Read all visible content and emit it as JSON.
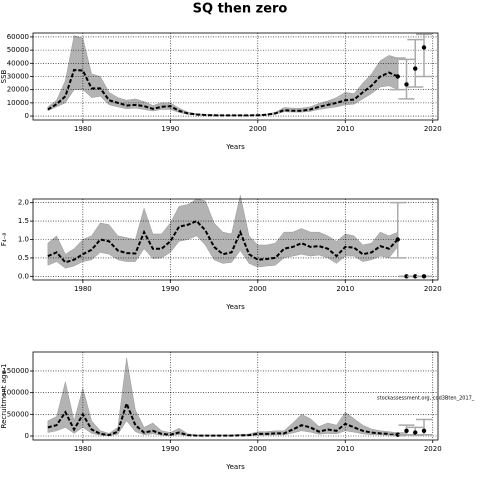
{
  "title": "SQ then zero",
  "chart_data": [
    {
      "type": "line",
      "ylabel": "SSB",
      "xlabel": "Years",
      "grid": true,
      "xlim": [
        1974.3,
        2020.6
      ],
      "xticks": [
        1980,
        1990,
        2000,
        2010,
        2020
      ],
      "ylim": [
        -3000,
        63000
      ],
      "yticks": [
        0,
        10000,
        20000,
        30000,
        40000,
        50000,
        60000
      ],
      "x": [
        1976,
        1977,
        1978,
        1979,
        1980,
        1981,
        1982,
        1983,
        1984,
        1985,
        1986,
        1987,
        1988,
        1989,
        1990,
        1991,
        1992,
        1993,
        1994,
        1995,
        1996,
        1997,
        1998,
        1999,
        2000,
        2001,
        2002,
        2003,
        2004,
        2005,
        2006,
        2007,
        2008,
        2009,
        2010,
        2011,
        2012,
        2013,
        2014,
        2015,
        2016
      ],
      "values": [
        5000,
        9000,
        15000,
        35000,
        34500,
        21000,
        21000,
        12000,
        10000,
        8000,
        8500,
        7500,
        5500,
        7000,
        7500,
        4000,
        2000,
        1200,
        800,
        600,
        500,
        500,
        500,
        500,
        600,
        1000,
        2000,
        4500,
        4000,
        4000,
        5000,
        7000,
        8500,
        10000,
        12000,
        12500,
        18000,
        23000,
        30000,
        33000,
        30000
      ],
      "upper": [
        7000,
        12000,
        27000,
        61000,
        59000,
        32000,
        30000,
        18000,
        14000,
        12000,
        13000,
        11000,
        8000,
        10000,
        10000,
        6000,
        3000,
        1800,
        1200,
        900,
        800,
        800,
        800,
        800,
        900,
        1500,
        2800,
        6500,
        6000,
        6000,
        7000,
        9500,
        11500,
        14000,
        18000,
        17000,
        25000,
        32000,
        42000,
        46000,
        44000
      ],
      "lower": [
        4000,
        7000,
        10000,
        20000,
        20000,
        14000,
        15000,
        8500,
        7000,
        5500,
        6000,
        5000,
        3800,
        5000,
        5000,
        2700,
        1300,
        800,
        500,
        400,
        300,
        300,
        300,
        300,
        400,
        700,
        1400,
        3200,
        3000,
        3000,
        3500,
        5000,
        6000,
        7000,
        8500,
        9000,
        13000,
        17000,
        22000,
        23000,
        20000
      ],
      "proj_x": [
        2016,
        2017,
        2018,
        2019
      ],
      "proj_values": [
        30000,
        24000,
        36000,
        52000
      ],
      "proj_lower": [
        20000,
        13000,
        22000,
        30000
      ],
      "proj_upper": [
        44000,
        43000,
        58000,
        62000
      ]
    },
    {
      "type": "line",
      "ylabel": "F₄₋₈",
      "xlabel": "Years",
      "grid": true,
      "xlim": [
        1974.3,
        2020.6
      ],
      "xticks": [
        1980,
        1990,
        2000,
        2010,
        2020
      ],
      "ylim": [
        -0.1,
        2.1
      ],
      "yticks": [
        {
          "value": 0,
          "label": "0.0"
        },
        0.5,
        {
          "value": 1,
          "label": "1.0"
        },
        1.5,
        {
          "value": 2,
          "label": "2.0"
        }
      ],
      "x": [
        1976,
        1977,
        1978,
        1979,
        1980,
        1981,
        1982,
        1983,
        1984,
        1985,
        1986,
        1987,
        1988,
        1989,
        1990,
        1991,
        1992,
        1993,
        1994,
        1995,
        1996,
        1997,
        1998,
        1999,
        2000,
        2001,
        2002,
        2003,
        2004,
        2005,
        2006,
        2007,
        2008,
        2009,
        2010,
        2011,
        2012,
        2013,
        2014,
        2015,
        2016
      ],
      "values": [
        0.55,
        0.65,
        0.38,
        0.45,
        0.6,
        0.72,
        1.0,
        0.95,
        0.7,
        0.63,
        0.62,
        1.2,
        0.75,
        0.75,
        0.95,
        1.35,
        1.4,
        1.5,
        1.25,
        0.8,
        0.6,
        0.65,
        1.2,
        0.6,
        0.45,
        0.47,
        0.5,
        0.75,
        0.8,
        0.9,
        0.8,
        0.82,
        0.75,
        0.55,
        0.8,
        0.78,
        0.6,
        0.65,
        0.82,
        0.75,
        1.0
      ],
      "upper": [
        0.9,
        1.1,
        0.6,
        0.75,
        1.0,
        1.1,
        1.45,
        1.4,
        1.1,
        1.05,
        1.0,
        1.85,
        1.15,
        1.15,
        1.45,
        1.9,
        1.95,
        2.1,
        2.05,
        1.45,
        1.2,
        1.15,
        2.2,
        1.1,
        0.85,
        0.85,
        0.9,
        1.2,
        1.2,
        1.3,
        1.2,
        1.2,
        1.1,
        0.95,
        1.15,
        1.1,
        0.85,
        0.9,
        1.2,
        1.1,
        1.2
      ],
      "lower": [
        0.3,
        0.4,
        0.22,
        0.28,
        0.4,
        0.45,
        0.65,
        0.6,
        0.45,
        0.4,
        0.4,
        0.75,
        0.48,
        0.5,
        0.65,
        0.95,
        1.0,
        1.1,
        0.85,
        0.45,
        0.35,
        0.38,
        0.7,
        0.35,
        0.25,
        0.28,
        0.3,
        0.5,
        0.55,
        0.6,
        0.55,
        0.58,
        0.5,
        0.35,
        0.55,
        0.55,
        0.4,
        0.45,
        0.55,
        0.5,
        0.8
      ],
      "proj_x": [
        2016,
        2017,
        2018,
        2019
      ],
      "proj_values": [
        1.0,
        0,
        0,
        0
      ],
      "proj_lower": [
        0.5,
        0,
        0,
        0
      ],
      "proj_upper": [
        2.0,
        0,
        0,
        0
      ]
    },
    {
      "type": "line",
      "ylabel": "Recruitment age 1",
      "xlabel": "Years",
      "grid": true,
      "annotation": "stockassessment.org, cod3Bten_2017_",
      "xlim": [
        1974.3,
        2020.6
      ],
      "xticks": [
        1980,
        1990,
        2000,
        2010,
        2020
      ],
      "ylim": [
        -9200,
        193800
      ],
      "yticks": [
        0,
        50000,
        100000,
        150000
      ],
      "x": [
        1976,
        1977,
        1978,
        1979,
        1980,
        1981,
        1982,
        1983,
        1984,
        1985,
        1986,
        1987,
        1988,
        1989,
        1990,
        1991,
        1992,
        1993,
        1994,
        1995,
        1996,
        1997,
        1998,
        1999,
        2000,
        2001,
        2002,
        2003,
        2004,
        2005,
        2006,
        2007,
        2008,
        2009,
        2010,
        2011,
        2012,
        2013,
        2014,
        2015,
        2016
      ],
      "values": [
        20000,
        25000,
        55000,
        15000,
        50000,
        15000,
        5000,
        2000,
        10000,
        75000,
        25000,
        8000,
        12000,
        5000,
        3000,
        8000,
        2000,
        1000,
        1000,
        1000,
        1000,
        1000,
        1500,
        2000,
        5000,
        5000,
        6000,
        6000,
        15000,
        25000,
        20000,
        10000,
        15000,
        12000,
        28000,
        20000,
        12000,
        8000,
        6000,
        5000,
        3000
      ],
      "upper": [
        35000,
        45000,
        125000,
        35000,
        110000,
        35000,
        12000,
        6000,
        20000,
        180000,
        60000,
        20000,
        30000,
        12000,
        8000,
        18000,
        5000,
        2500,
        2500,
        2500,
        2500,
        2500,
        3500,
        4500,
        10000,
        10000,
        12000,
        12000,
        30000,
        50000,
        40000,
        22000,
        30000,
        25000,
        55000,
        40000,
        25000,
        16000,
        12000,
        10000,
        7000
      ],
      "lower": [
        8000,
        12000,
        20000,
        6000,
        20000,
        6000,
        2000,
        800,
        4000,
        35000,
        10000,
        3000,
        5000,
        2000,
        1000,
        3000,
        800,
        400,
        400,
        400,
        400,
        400,
        600,
        800,
        2000,
        2000,
        2500,
        2500,
        7000,
        12000,
        9000,
        4000,
        6000,
        5000,
        12000,
        9000,
        5000,
        3000,
        2500,
        2000,
        1000
      ],
      "proj_x": [
        2016,
        2017,
        2018,
        2019
      ],
      "proj_values": [
        3000,
        12000,
        8000,
        12000
      ],
      "proj_lower": [
        1000,
        3000,
        2000,
        3000
      ],
      "proj_upper": [
        7000,
        25000,
        20000,
        38000
      ]
    }
  ]
}
